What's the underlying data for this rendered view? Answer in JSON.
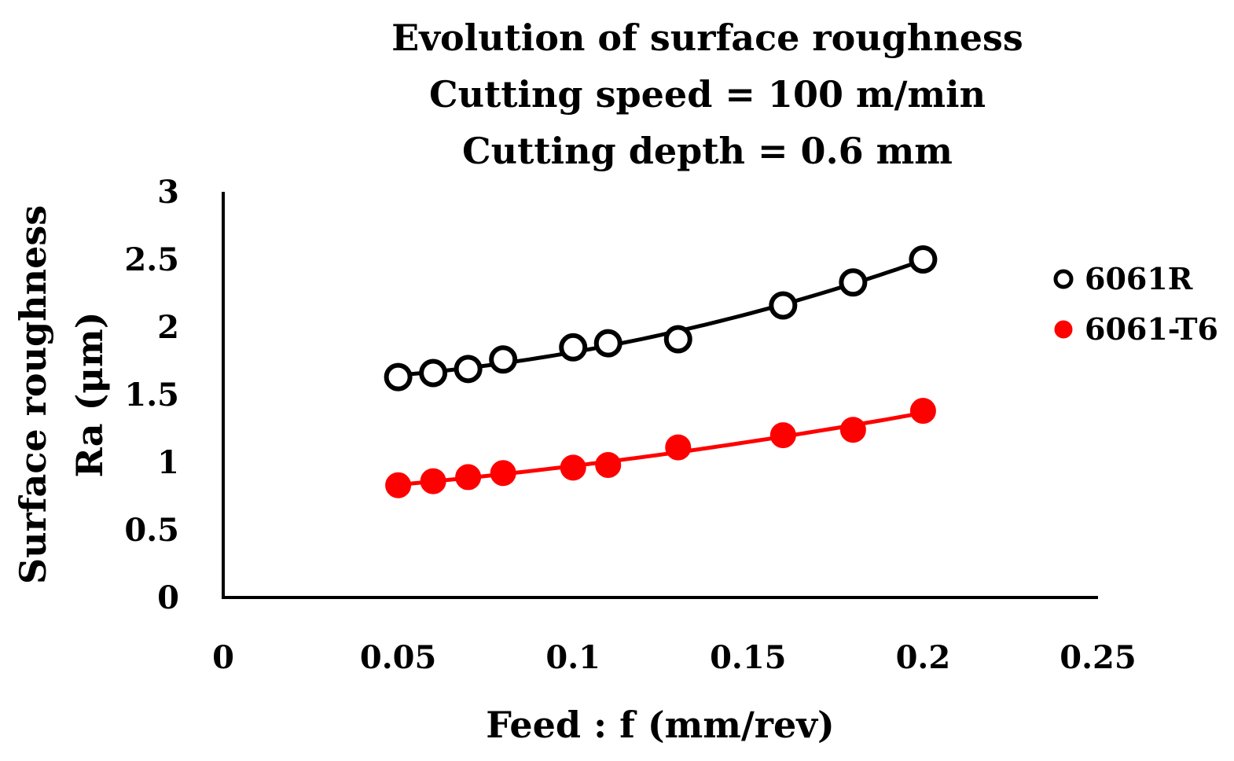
{
  "chart_data": {
    "type": "scatter",
    "title_lines": [
      "Evolution of surface roughness",
      "Cutting speed = 100 m/min",
      "Cutting depth = 0.6 mm"
    ],
    "xlabel": "Feed : f (mm/rev)",
    "ylabel_lines": [
      "Surface roughness",
      "Ra (μm)"
    ],
    "xlim": [
      0,
      0.25
    ],
    "ylim": [
      0,
      3
    ],
    "x_ticks": [
      0,
      0.05,
      0.1,
      0.15,
      0.2,
      0.25
    ],
    "x_tick_labels": [
      "0",
      "0.05",
      "0.1",
      "0.15",
      "0.2",
      "0.25"
    ],
    "y_ticks": [
      0,
      0.5,
      1,
      1.5,
      2,
      2.5,
      3
    ],
    "y_tick_labels": [
      "0",
      "0.5",
      "1",
      "1.5",
      "2",
      "2.5",
      "3"
    ],
    "grid": false,
    "legend_position": "right",
    "series": [
      {
        "name": "6061R",
        "marker": "open-circle",
        "color": "#000000",
        "trendline": "polynomial",
        "x": [
          0.05,
          0.06,
          0.07,
          0.08,
          0.1,
          0.11,
          0.13,
          0.16,
          0.18,
          0.2
        ],
        "y": [
          1.63,
          1.66,
          1.69,
          1.76,
          1.85,
          1.88,
          1.91,
          2.16,
          2.33,
          2.5
        ]
      },
      {
        "name": "6061-T6",
        "marker": "filled-circle",
        "color": "#ff0000",
        "trendline": "polynomial",
        "x": [
          0.05,
          0.06,
          0.07,
          0.08,
          0.1,
          0.11,
          0.13,
          0.16,
          0.18,
          0.2
        ],
        "y": [
          0.83,
          0.86,
          0.89,
          0.92,
          0.96,
          0.98,
          1.11,
          1.2,
          1.24,
          1.38
        ]
      }
    ]
  }
}
